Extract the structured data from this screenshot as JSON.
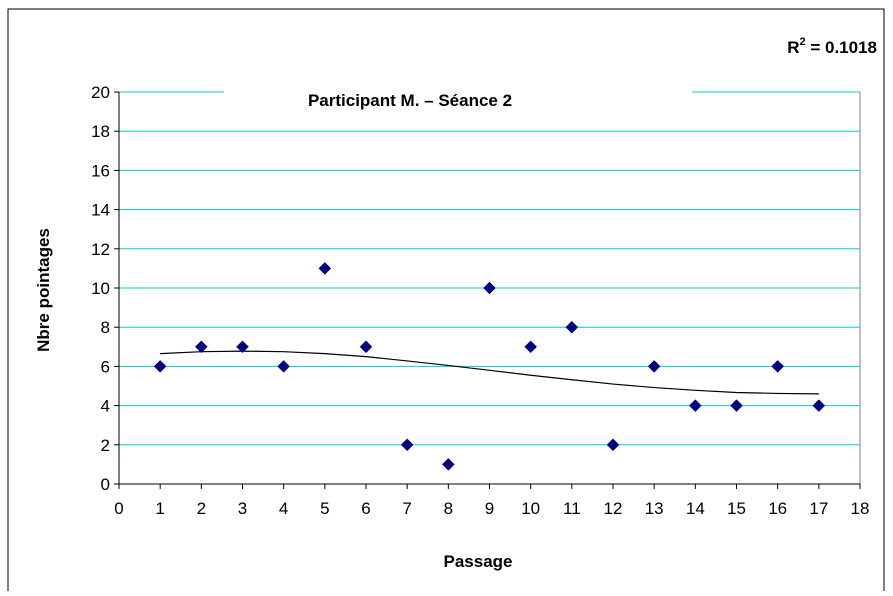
{
  "chart_data": {
    "type": "scatter",
    "title": "Participant M. – Séance 2",
    "xlabel": "Passage",
    "ylabel": "Nbre pointages",
    "xlim": [
      0,
      18
    ],
    "ylim": [
      0,
      20
    ],
    "x_ticks": [
      0,
      1,
      2,
      3,
      4,
      5,
      6,
      7,
      8,
      9,
      10,
      11,
      12,
      13,
      14,
      15,
      16,
      17,
      18
    ],
    "y_ticks": [
      0,
      2,
      4,
      6,
      8,
      10,
      12,
      14,
      16,
      18,
      20
    ],
    "grid": "horizontal",
    "marker_color": "#000080",
    "gridline_color": "#00CCCC",
    "series": [
      {
        "x": [
          1,
          2,
          3,
          4,
          5,
          6,
          7,
          8,
          9,
          10,
          11,
          12,
          13,
          14,
          15,
          16,
          17
        ],
        "y": [
          6,
          7,
          7,
          6,
          11,
          7,
          2,
          1,
          10,
          7,
          8,
          2,
          6,
          4,
          4,
          6,
          4
        ]
      }
    ],
    "trendline": {
      "type": "polynomial",
      "x": [
        1,
        2,
        3,
        4,
        5,
        6,
        7,
        8,
        9,
        10,
        11,
        12,
        13,
        14,
        15,
        16,
        17
      ],
      "y": [
        6.65,
        6.75,
        6.78,
        6.75,
        6.65,
        6.5,
        6.28,
        6.05,
        5.8,
        5.55,
        5.32,
        5.1,
        4.92,
        4.78,
        4.67,
        4.62,
        4.6
      ]
    },
    "r2_label": {
      "prefix": "R",
      "exponent": "2",
      "suffix": " = 0.1018"
    }
  }
}
